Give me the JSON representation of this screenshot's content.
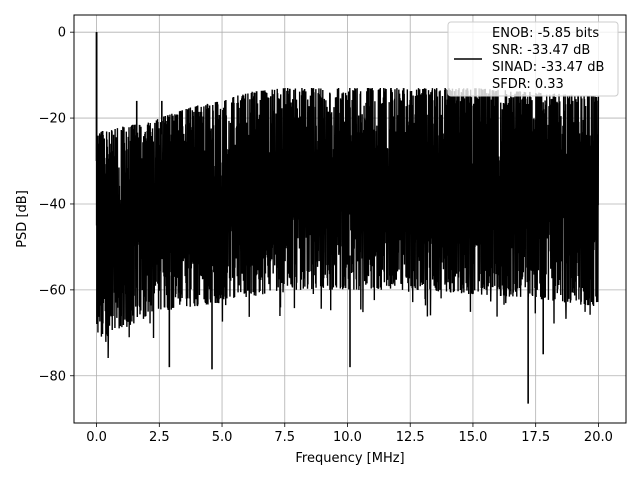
{
  "chart_data": {
    "type": "line",
    "title": "",
    "xlabel": "Frequency [MHz]",
    "ylabel": "PSD [dB]",
    "xlim": [
      -0.9,
      21.1
    ],
    "ylim": [
      -91,
      4
    ],
    "xticks": [
      0.0,
      2.5,
      5.0,
      7.5,
      10.0,
      12.5,
      15.0,
      17.5,
      20.0
    ],
    "xtick_labels": [
      "0.0",
      "2.5",
      "5.0",
      "7.5",
      "10.0",
      "12.5",
      "15.0",
      "17.5",
      "20.0"
    ],
    "yticks": [
      0,
      -20,
      -40,
      -60,
      -80
    ],
    "ytick_labels": [
      "0",
      "−20",
      "−40",
      "−60",
      "−80"
    ],
    "grid": true,
    "legend": {
      "placement": "top-right",
      "entries": [
        "ENOB: -5.85 bits",
        "SNR: -33.47 dB",
        "SINAD: -33.47 dB",
        "SFDR: 0.33"
      ]
    },
    "series": [
      {
        "color": "#000000",
        "description_of_shape": "dense noise floor spanning 0-20 MHz",
        "peak": {
          "x": 0.0,
          "y": 0.0
        },
        "upper_envelope": [
          [
            0.0,
            -23
          ],
          [
            0.5,
            -23
          ],
          [
            1.0,
            -22
          ],
          [
            2.0,
            -21
          ],
          [
            3.0,
            -19
          ],
          [
            4.0,
            -17
          ],
          [
            5.0,
            -16
          ],
          [
            6.0,
            -14
          ],
          [
            7.5,
            -13
          ],
          [
            10.0,
            -13
          ],
          [
            12.5,
            -13
          ],
          [
            15.0,
            -13
          ],
          [
            17.5,
            -14
          ],
          [
            20.0,
            -15
          ]
        ],
        "lower_envelope": [
          [
            0.0,
            -72
          ],
          [
            2.5,
            -65
          ],
          [
            5.0,
            -63
          ],
          [
            7.5,
            -60
          ],
          [
            10.0,
            -60
          ],
          [
            12.5,
            -60
          ],
          [
            15.0,
            -61
          ],
          [
            17.5,
            -62
          ],
          [
            20.0,
            -64
          ]
        ],
        "notable_dips": [
          [
            2.9,
            -78
          ],
          [
            4.6,
            -78.5
          ],
          [
            10.1,
            -78
          ],
          [
            17.2,
            -86.5
          ],
          [
            17.8,
            -75
          ]
        ],
        "notable_spikes": [
          [
            1.6,
            -16
          ],
          [
            2.6,
            -16
          ],
          [
            13.1,
            -15
          ]
        ]
      }
    ]
  }
}
